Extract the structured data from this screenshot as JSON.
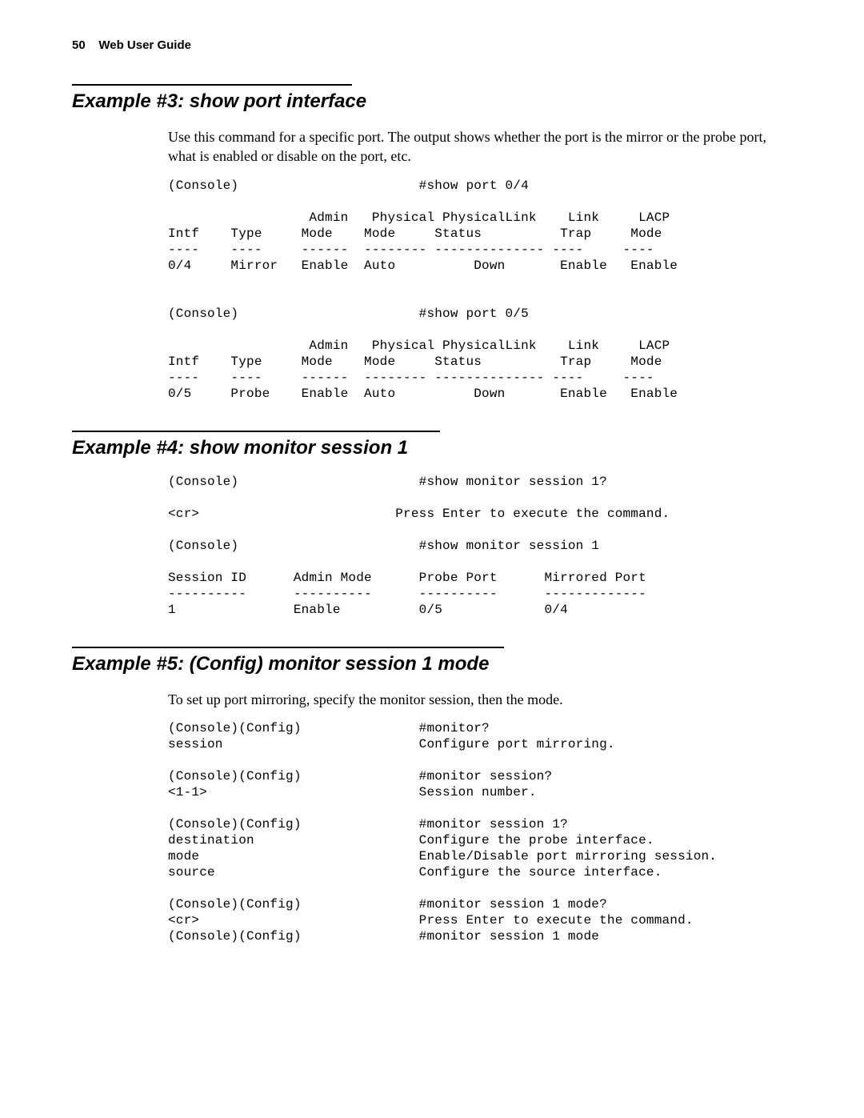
{
  "header": {
    "page_number": "50",
    "doc_title": "Web User Guide"
  },
  "example3": {
    "title": "Example #3: show port interface",
    "intro": "Use this command for a specific port. The output shows whether the port is the mirror or the probe port, what is enabled or disable on the port, etc.",
    "console": "(Console)                       #show port 0/4\n\n                  Admin   Physical PhysicalLink    Link     LACP\nIntf    Type     Mode    Mode     Status          Trap     Mode\n----    ----     ------  -------- -------------- ----     ----\n0/4     Mirror   Enable  Auto          Down       Enable   Enable\n\n\n(Console)                       #show port 0/5\n\n                  Admin   Physical PhysicalLink    Link     LACP\nIntf    Type     Mode    Mode     Status          Trap     Mode\n----    ----     ------  -------- -------------- ----     ----\n0/5     Probe    Enable  Auto          Down       Enable   Enable"
  },
  "example4": {
    "title": "Example #4: show monitor session 1",
    "console": "(Console)                       #show monitor session 1?\n\n<cr>                         Press Enter to execute the command.\n\n(Console)                       #show monitor session 1\n\nSession ID      Admin Mode      Probe Port      Mirrored Port\n----------      ----------      ----------      -------------\n1               Enable          0/5             0/4"
  },
  "example5": {
    "title": "Example #5: (Config) monitor session 1 mode",
    "intro": "To set up port mirroring, specify the monitor session, then the mode.",
    "console": "(Console)(Config)               #monitor?\nsession                         Configure port mirroring.\n\n(Console)(Config)               #monitor session?\n<1-1>                           Session number.\n\n(Console)(Config)               #monitor session 1?\ndestination                     Configure the probe interface.\nmode                            Enable/Disable port mirroring session.\nsource                          Configure the source interface.\n\n(Console)(Config)               #monitor session 1 mode?\n<cr>                            Press Enter to execute the command.\n(Console)(Config)               #monitor session 1 mode"
  }
}
